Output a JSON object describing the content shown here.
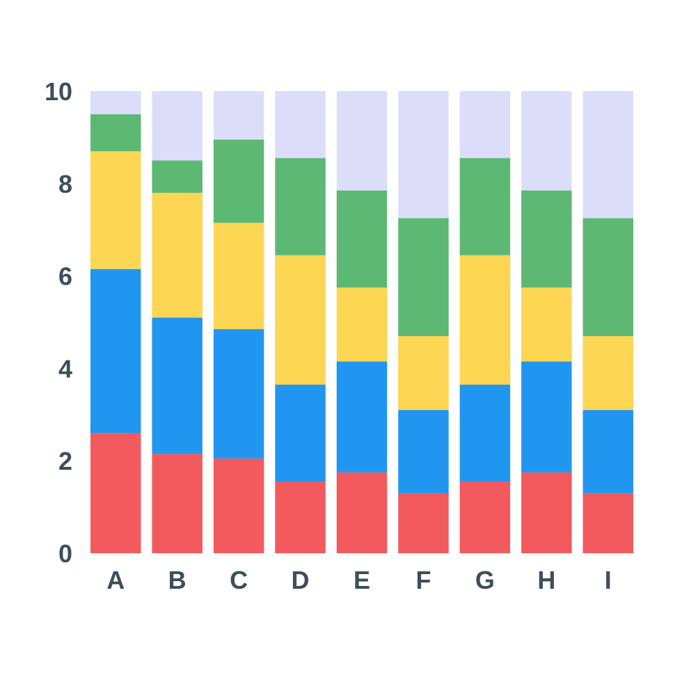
{
  "chart_data": {
    "type": "bar",
    "stacked": true,
    "title": "",
    "xlabel": "",
    "ylabel": "",
    "ylim": [
      0,
      10
    ],
    "yticks": [
      "0",
      "2",
      "4",
      "6",
      "8",
      "10"
    ],
    "grid": false,
    "categories": [
      "A",
      "B",
      "C",
      "D",
      "E",
      "F",
      "G",
      "H",
      "I"
    ],
    "background_color": "#dcdef9",
    "series": [
      {
        "color": "#f25a5d",
        "values": [
          2.6,
          2.15,
          2.05,
          1.55,
          1.75,
          1.3,
          1.55,
          1.75,
          1.3
        ]
      },
      {
        "color": "#2196f1",
        "values": [
          3.55,
          2.95,
          2.8,
          2.1,
          2.4,
          1.8,
          2.1,
          2.4,
          1.8
        ]
      },
      {
        "color": "#fdd653",
        "values": [
          2.55,
          2.7,
          2.3,
          2.8,
          1.6,
          1.6,
          2.8,
          1.6,
          1.6
        ]
      },
      {
        "color": "#5db873",
        "values": [
          0.8,
          0.7,
          1.8,
          2.1,
          2.1,
          2.55,
          2.1,
          2.1,
          2.55
        ]
      }
    ]
  }
}
